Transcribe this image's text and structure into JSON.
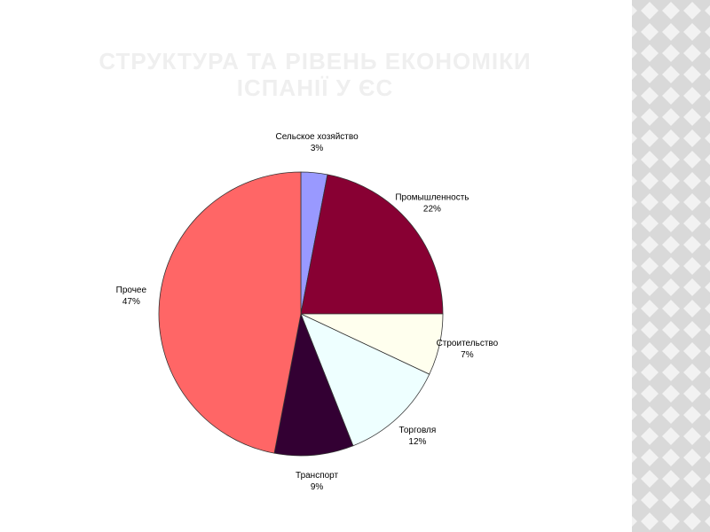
{
  "chart_data": {
    "type": "pie",
    "title": "СТРУКТУРА ТА РІВЕНЬ ЕКОНОМІКИ ІСПАНІЇ У ЄС",
    "categories": [
      "Сельское хозяйство",
      "Промышленность",
      "Строительство",
      "Торговля",
      "Транспорт",
      "Прочее"
    ],
    "values": [
      3,
      22,
      7,
      12,
      9,
      47
    ],
    "value_labels": [
      "3%",
      "22%",
      "7%",
      "12%",
      "9%",
      "47%"
    ],
    "colors": [
      "#9999ff",
      "#880033",
      "#ffffee",
      "#eeffff",
      "#330033",
      "#ff6666"
    ]
  }
}
